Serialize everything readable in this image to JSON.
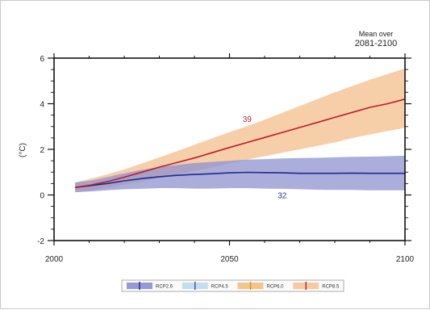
{
  "chart_data": {
    "type": "line",
    "title": "",
    "corner_note": [
      "Mean over",
      "2081-2100"
    ],
    "xlabel": "",
    "ylabel": "(°C)",
    "xlim": [
      2000,
      2100
    ],
    "ylim": [
      -2,
      6
    ],
    "x_ticks": [
      2000,
      2050,
      2100
    ],
    "y_ticks": [
      -2,
      0,
      2,
      4,
      6
    ],
    "grid": false,
    "legend_position": "bottom",
    "legend": [
      "RCP2.6",
      "RCP4.5",
      "RCP6.0",
      "RCP8.5"
    ],
    "annotations": [
      {
        "text": "39",
        "color": "#b02a3a",
        "x": 2055,
        "y": 3.2
      },
      {
        "text": "32",
        "color": "#2a3590",
        "x": 2065,
        "y": -0.15
      }
    ],
    "series": [
      {
        "name": "RCP2.6",
        "color": "#1f2a8a",
        "band_color": "#8f92cf",
        "x": [
          2006,
          2010,
          2015,
          2020,
          2025,
          2030,
          2035,
          2040,
          2045,
          2050,
          2055,
          2060,
          2065,
          2070,
          2075,
          2080,
          2085,
          2090,
          2095,
          2100
        ],
        "values": [
          0.33,
          0.4,
          0.5,
          0.62,
          0.72,
          0.8,
          0.86,
          0.9,
          0.93,
          0.97,
          0.99,
          0.98,
          0.97,
          0.95,
          0.95,
          0.95,
          0.96,
          0.95,
          0.95,
          0.95
        ],
        "low": [
          0.12,
          0.15,
          0.2,
          0.25,
          0.27,
          0.3,
          0.3,
          0.28,
          0.28,
          0.3,
          0.3,
          0.28,
          0.27,
          0.25,
          0.23,
          0.22,
          0.22,
          0.2,
          0.2,
          0.2
        ],
        "high": [
          0.55,
          0.62,
          0.78,
          0.95,
          1.1,
          1.22,
          1.32,
          1.4,
          1.45,
          1.5,
          1.55,
          1.57,
          1.6,
          1.62,
          1.63,
          1.65,
          1.67,
          1.68,
          1.7,
          1.72
        ]
      },
      {
        "name": "RCP8.5",
        "color": "#c0192a",
        "band_color": "#f5c79a",
        "x": [
          2006,
          2010,
          2015,
          2020,
          2025,
          2030,
          2035,
          2040,
          2045,
          2050,
          2055,
          2060,
          2065,
          2070,
          2075,
          2080,
          2085,
          2090,
          2095,
          2100
        ],
        "values": [
          0.33,
          0.42,
          0.58,
          0.78,
          1.0,
          1.22,
          1.42,
          1.62,
          1.85,
          2.08,
          2.3,
          2.52,
          2.74,
          2.96,
          3.18,
          3.4,
          3.62,
          3.84,
          4.0,
          4.2
        ],
        "low": [
          0.12,
          0.18,
          0.3,
          0.45,
          0.6,
          0.75,
          0.9,
          1.05,
          1.2,
          1.38,
          1.55,
          1.7,
          1.85,
          2.0,
          2.15,
          2.3,
          2.5,
          2.65,
          2.8,
          2.95
        ],
        "high": [
          0.55,
          0.7,
          0.9,
          1.12,
          1.38,
          1.65,
          1.92,
          2.2,
          2.48,
          2.75,
          3.02,
          3.3,
          3.6,
          3.9,
          4.2,
          4.5,
          4.78,
          5.05,
          5.3,
          5.55
        ]
      }
    ],
    "legend_entries": [
      {
        "label": "RCP2.6",
        "swatch": "#9799d6",
        "bar": "#1f2a8a"
      },
      {
        "label": "RCP4.5",
        "swatch": "#c6dcef",
        "bar": "#3a4fb0"
      },
      {
        "label": "RCP6.0",
        "swatch": "#f3c58a",
        "bar": "#e08a1a"
      },
      {
        "label": "RCP8.5",
        "swatch": "#f6c9a2",
        "bar": "#c0192a"
      }
    ]
  }
}
